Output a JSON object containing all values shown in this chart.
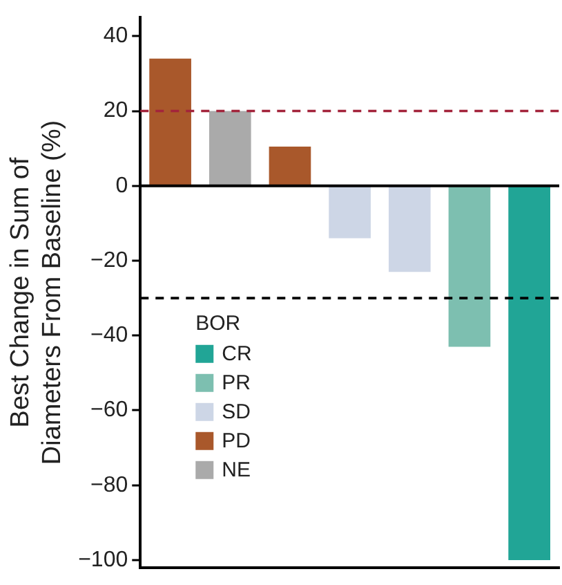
{
  "chart_data": {
    "type": "bar",
    "ylabel": "Best Change in Sum of\nDiameters From Baseline (%)",
    "legend_title": "BOR",
    "legend": "left",
    "categories": [
      null,
      null,
      null,
      null,
      null,
      null,
      null
    ],
    "series": [
      {
        "name": "CR",
        "color": "#21a596",
        "values": [
          null,
          null,
          null,
          null,
          null,
          null,
          -100
        ]
      },
      {
        "name": "PR",
        "color": "#7dbfb0",
        "values": [
          null,
          null,
          null,
          null,
          null,
          -43,
          null
        ]
      },
      {
        "name": "SD",
        "color": "#cdd6e6",
        "values": [
          null,
          null,
          null,
          -14,
          -23,
          null,
          null
        ]
      },
      {
        "name": "PD",
        "color": "#a9582b",
        "values": [
          34,
          null,
          10.5,
          null,
          null,
          null,
          null
        ]
      },
      {
        "name": "NE",
        "color": "#aaaaaa",
        "values": [
          null,
          20,
          null,
          null,
          null,
          null,
          null
        ]
      }
    ],
    "ylim": [
      -102,
      45
    ],
    "yticks": [
      -100,
      -80,
      -60,
      -40,
      -20,
      0,
      20,
      40
    ],
    "tick_labels": "y",
    "grid": false,
    "ref_lines": [
      {
        "axis": "y",
        "value": 20,
        "color": "#a3243b",
        "line_style": "dashed"
      },
      {
        "axis": "y",
        "value": -30,
        "color": "#000000",
        "line_style": "dashed"
      }
    ]
  }
}
